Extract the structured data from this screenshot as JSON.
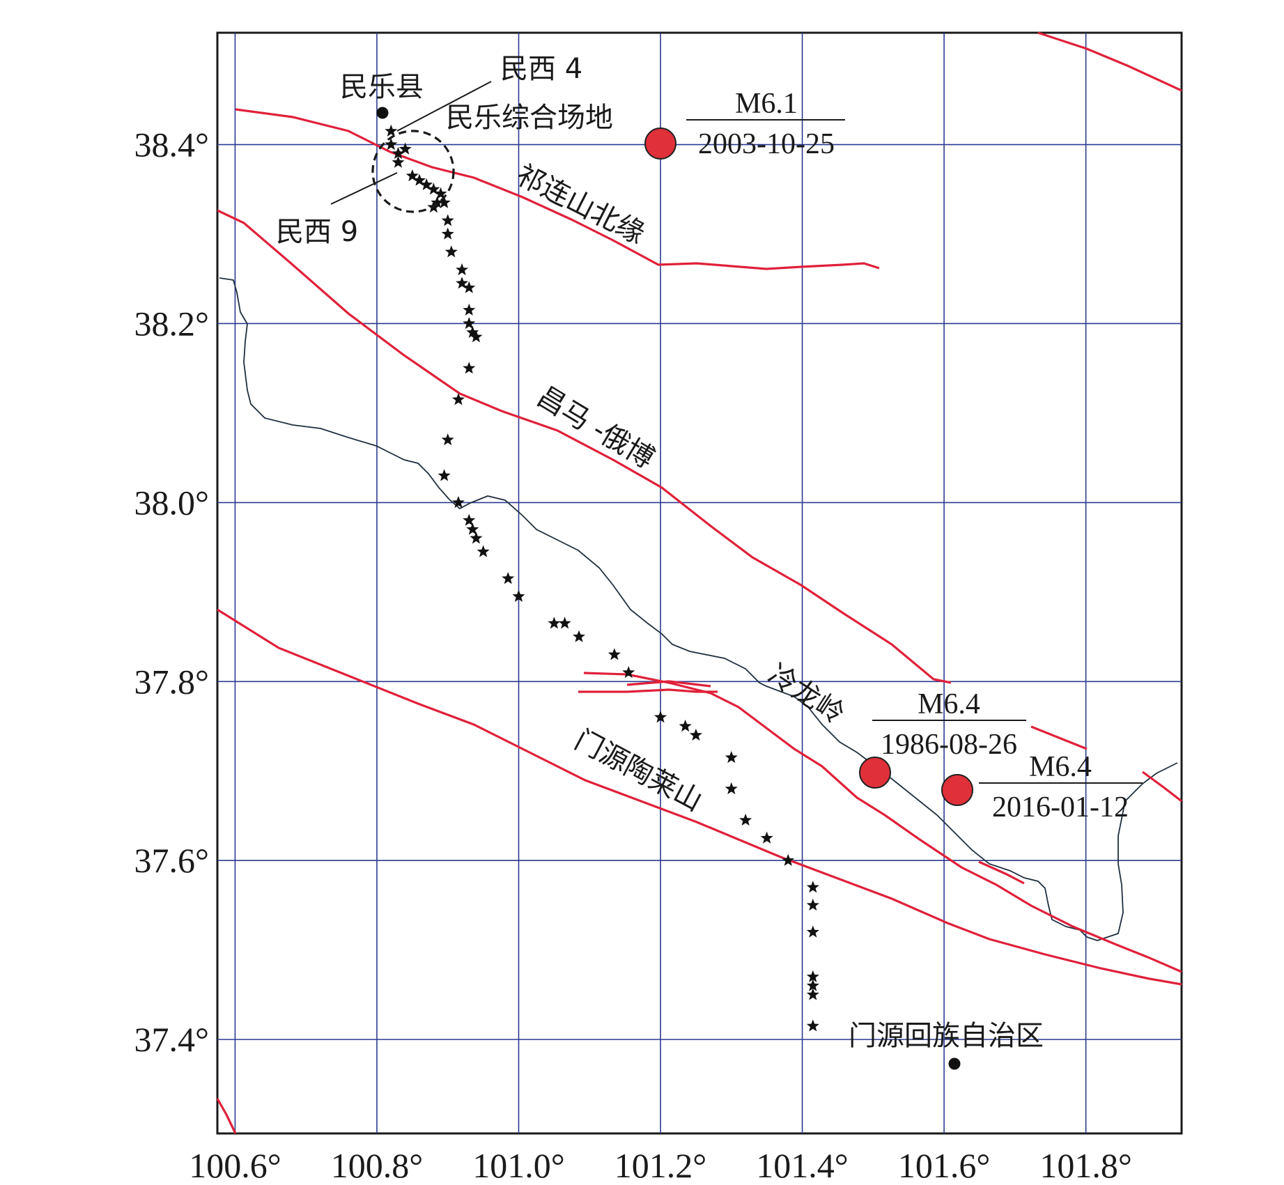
{
  "axes": {
    "x_ticks": [
      "100.6°",
      "100.8°",
      "101.0°",
      "101.2°",
      "101.4°",
      "101.6°",
      "101.8°"
    ],
    "y_ticks": [
      "38.4°",
      "38.2°",
      "38.0°",
      "37.8°",
      "37.6°",
      "37.4°"
    ],
    "lon_range": [
      100.575,
      101.935
    ],
    "lat_range": [
      37.295,
      38.525
    ]
  },
  "colors": {
    "fault": "#e0203a",
    "grid": "#2b3a8f",
    "epicenter": "#e0303a",
    "border_line": "#1f2f3f"
  },
  "labels": {
    "minle_county": "民乐县",
    "minxi4": "民西 4",
    "minle_site": "民乐综合场地",
    "minxi9": "民西 9",
    "qilian_fault": "祁连山北缘",
    "changma_fault": "昌马 -俄博",
    "lenglongling_fault": "冷龙岭",
    "menyuan_fault": "门源陶莱山",
    "menyuan_county": "门源回族自治区"
  },
  "earthquakes": [
    {
      "magnitude": "M6.1",
      "date": "2003-10-25",
      "lon": 101.2,
      "lat": 38.4
    },
    {
      "magnitude": "M6.4",
      "date": "1986-08-26",
      "lon": 101.5,
      "lat": 37.7
    },
    {
      "magnitude": "M6.4",
      "date": "2016-01-12",
      "lon": 101.62,
      "lat": 37.68
    }
  ],
  "towns": [
    {
      "name": "民乐县",
      "lon": 100.81,
      "lat": 38.433
    },
    {
      "name": "门源回族自治区",
      "lon": 101.62,
      "lat": 37.375
    }
  ],
  "stations": [
    [
      100.82,
      38.415
    ],
    [
      100.82,
      38.4
    ],
    [
      100.83,
      38.39
    ],
    [
      100.84,
      38.395
    ],
    [
      100.83,
      38.38
    ],
    [
      100.85,
      38.365
    ],
    [
      100.86,
      38.36
    ],
    [
      100.87,
      38.355
    ],
    [
      100.88,
      38.35
    ],
    [
      100.89,
      38.345
    ],
    [
      100.885,
      38.335
    ],
    [
      100.895,
      38.335
    ],
    [
      100.88,
      38.33
    ],
    [
      100.9,
      38.315
    ],
    [
      100.9,
      38.3
    ],
    [
      100.905,
      38.28
    ],
    [
      100.92,
      38.26
    ],
    [
      100.92,
      38.245
    ],
    [
      100.93,
      38.24
    ],
    [
      100.93,
      38.215
    ],
    [
      100.93,
      38.2
    ],
    [
      100.935,
      38.19
    ],
    [
      100.94,
      38.185
    ],
    [
      100.93,
      38.15
    ],
    [
      100.915,
      38.115
    ],
    [
      100.9,
      38.07
    ],
    [
      100.895,
      38.03
    ],
    [
      100.915,
      38.0
    ],
    [
      100.93,
      37.98
    ],
    [
      100.935,
      37.97
    ],
    [
      100.94,
      37.96
    ],
    [
      100.95,
      37.945
    ],
    [
      100.985,
      37.915
    ],
    [
      101.0,
      37.895
    ],
    [
      101.05,
      37.865
    ],
    [
      101.065,
      37.865
    ],
    [
      101.085,
      37.85
    ],
    [
      101.135,
      37.83
    ],
    [
      101.155,
      37.81
    ],
    [
      101.2,
      37.76
    ],
    [
      101.235,
      37.75
    ],
    [
      101.25,
      37.74
    ],
    [
      101.3,
      37.715
    ],
    [
      101.3,
      37.68
    ],
    [
      101.32,
      37.645
    ],
    [
      101.35,
      37.625
    ],
    [
      101.38,
      37.6
    ],
    [
      101.415,
      37.57
    ],
    [
      101.415,
      37.55
    ],
    [
      101.415,
      37.52
    ],
    [
      101.415,
      37.47
    ],
    [
      101.415,
      37.46
    ],
    [
      101.415,
      37.45
    ],
    [
      101.415,
      37.415
    ]
  ]
}
